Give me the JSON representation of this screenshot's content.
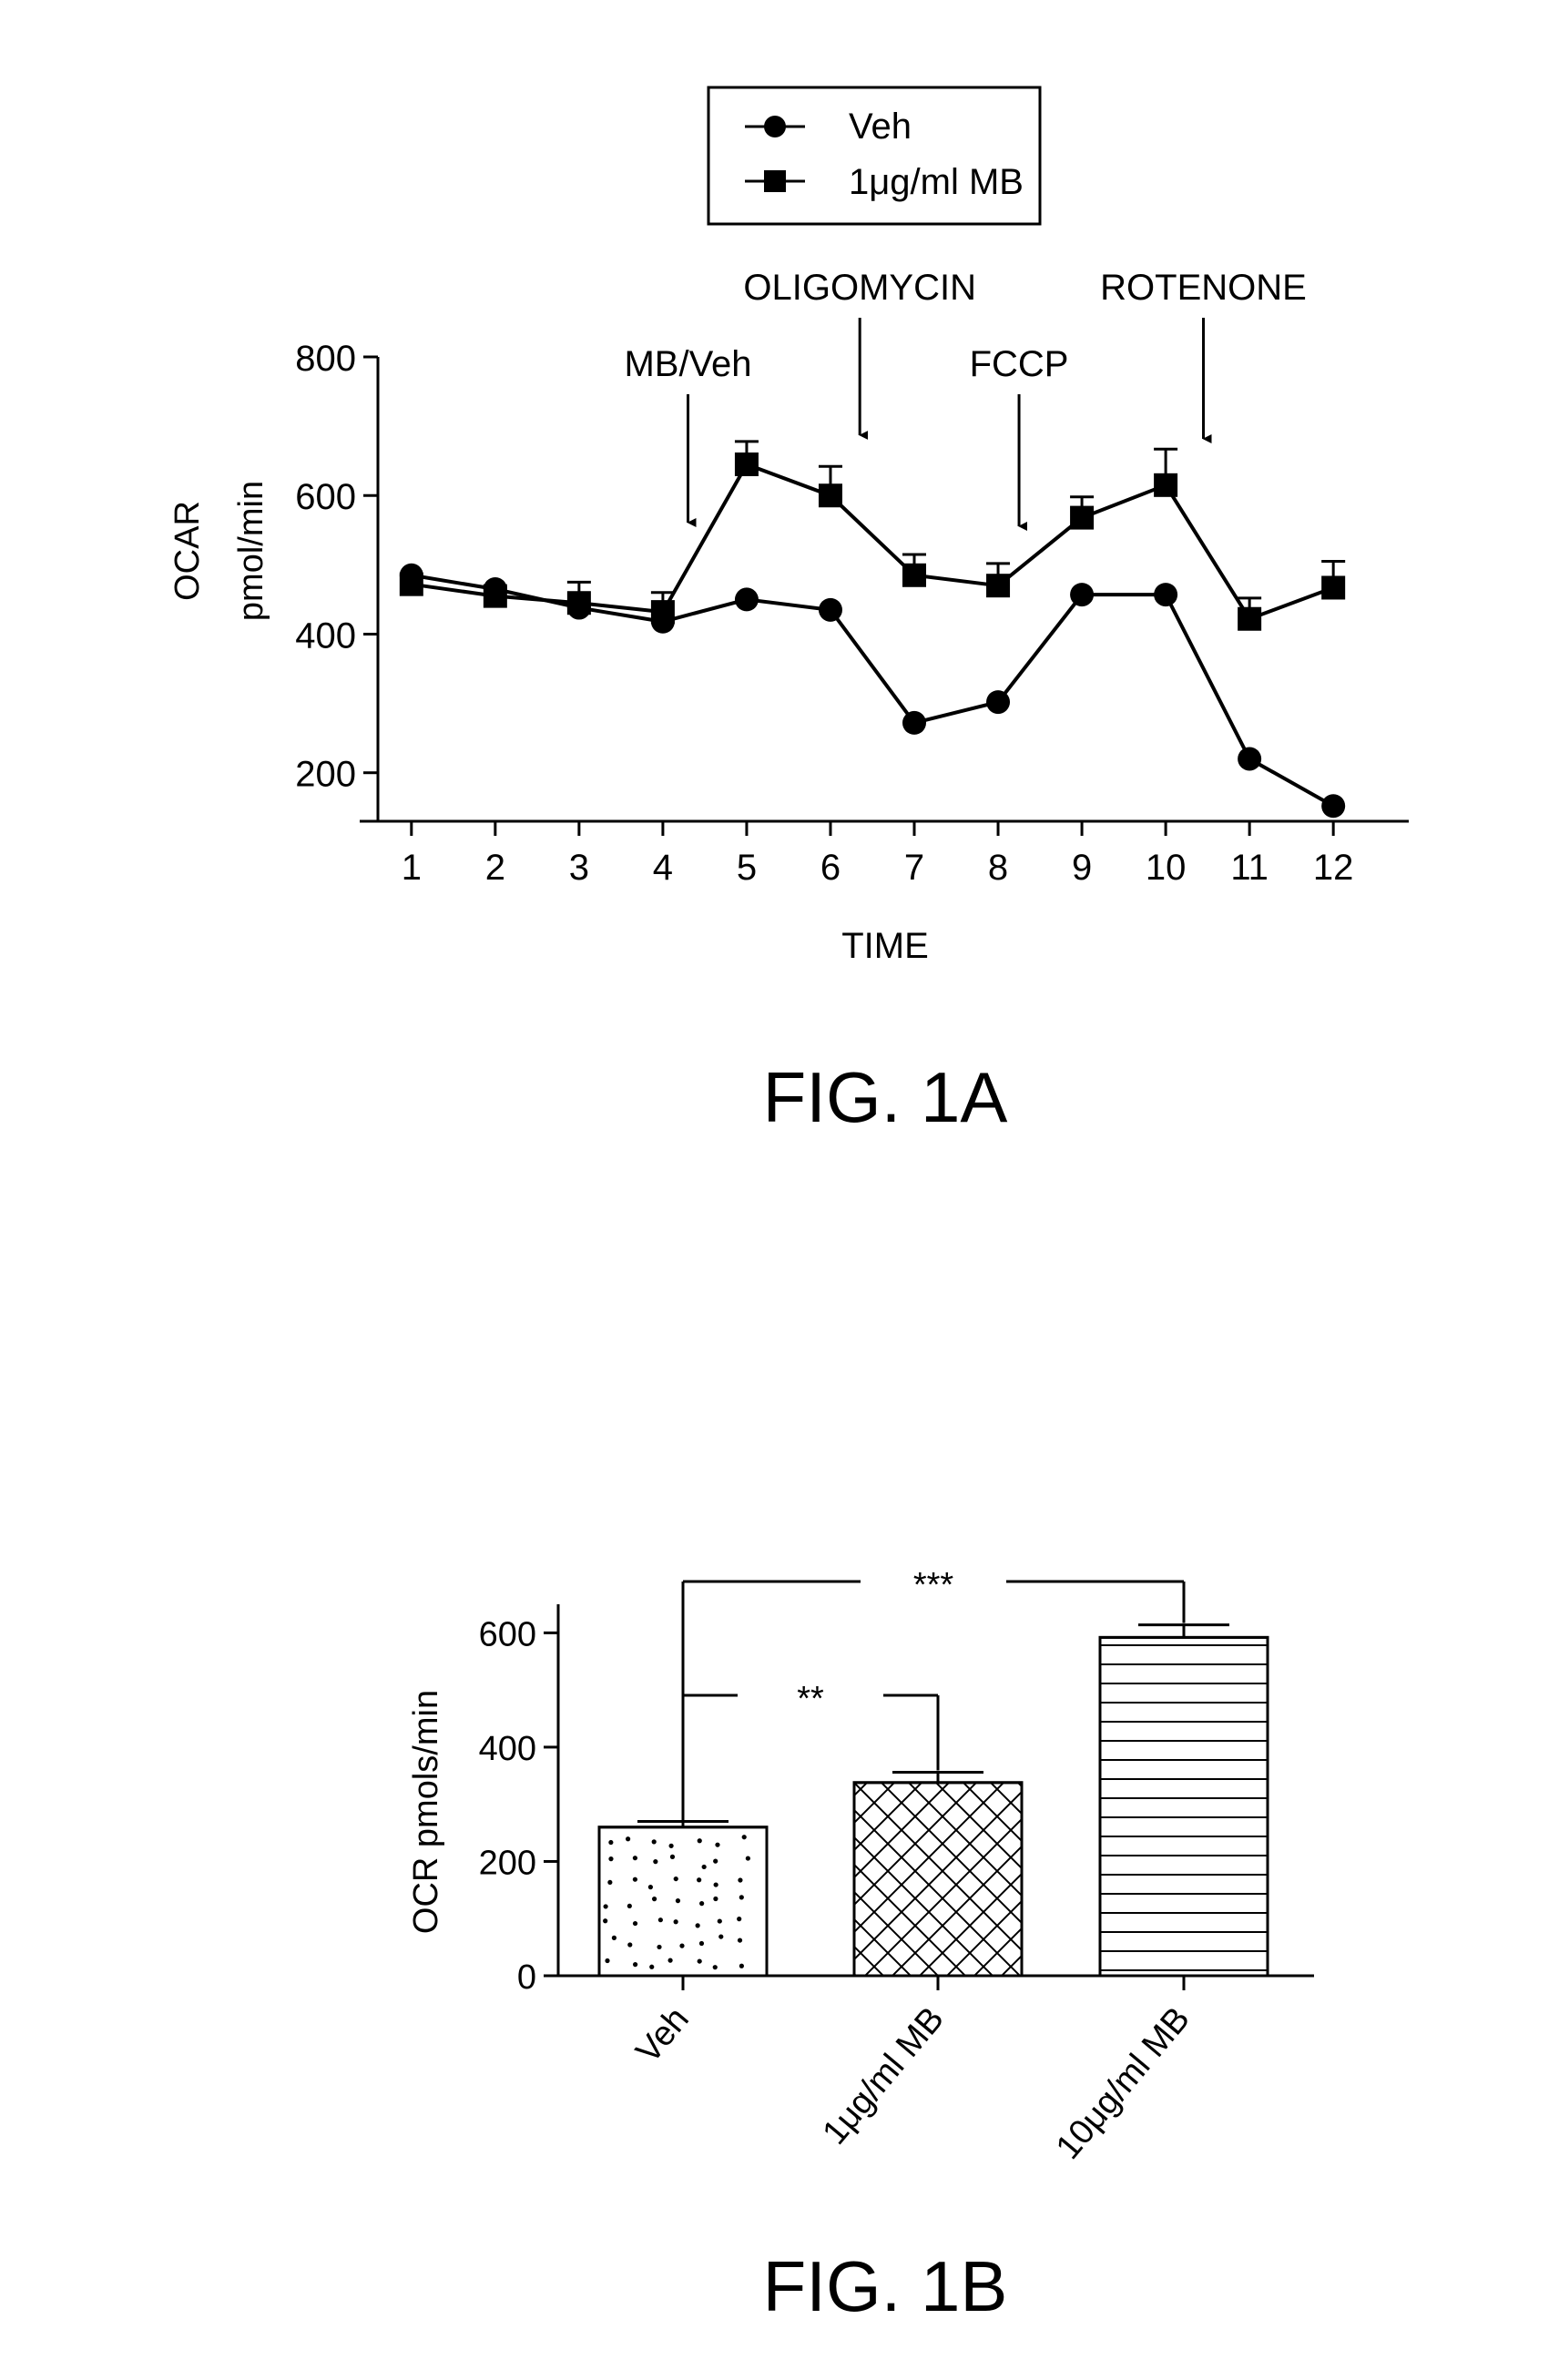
{
  "chart_data": [
    {
      "type": "line",
      "figure_label": "FIG. 1A",
      "xlabel": "TIME",
      "ylabel": [
        "OCAR",
        "pmol/min"
      ],
      "categories": [
        "1",
        "2",
        "3",
        "4",
        "5",
        "6",
        "7",
        "8",
        "9",
        "10",
        "11",
        "12"
      ],
      "x": [
        1,
        2,
        3,
        4,
        5,
        6,
        7,
        8,
        9,
        10,
        11,
        12
      ],
      "xlim": [
        0.6,
        12.9
      ],
      "ylim": [
        130,
        800
      ],
      "yticks": [
        "200",
        "400",
        "600",
        "800"
      ],
      "grid": false,
      "legend_position": "top",
      "series": [
        {
          "name": "Veh",
          "marker": "circle",
          "values": [
            485,
            465,
            438,
            418,
            450,
            435,
            272,
            302,
            457,
            457,
            220,
            152
          ],
          "errors": [
            0,
            0,
            0,
            0,
            0,
            0,
            0,
            0,
            0,
            0,
            0,
            0
          ]
        },
        {
          "name": "1μg/ml MB",
          "marker": "square",
          "values": [
            472,
            455,
            445,
            432,
            645,
            600,
            485,
            470,
            568,
            615,
            422,
            467
          ],
          "errors": [
            0,
            12,
            30,
            28,
            33,
            42,
            30,
            32,
            30,
            52,
            30,
            38
          ]
        }
      ],
      "annotations": [
        {
          "text": "MB/Veh",
          "x": 4.3
        },
        {
          "text": "OLIGOMYCIN",
          "x": 6.35
        },
        {
          "text": "FCCP",
          "x": 8.25
        },
        {
          "text": "ROTENONE",
          "x": 10.45
        }
      ]
    },
    {
      "type": "bar",
      "figure_label": "FIG. 1B",
      "xlabel": "",
      "ylabel": "OCR pmols/min",
      "categories": [
        "Veh",
        "1μg/ml MB",
        "10μg/ml MB"
      ],
      "values": [
        260,
        338,
        592
      ],
      "errors": [
        10,
        18,
        22
      ],
      "patterns": [
        "dots",
        "crosshatch",
        "horizontal-lines"
      ],
      "ylim": [
        0,
        650
      ],
      "yticks": [
        "0",
        "200",
        "400",
        "600"
      ],
      "grid": false,
      "significance": [
        {
          "from": "Veh",
          "to": "1μg/ml MB",
          "label": "**"
        },
        {
          "from": "Veh",
          "to": "10μg/ml MB",
          "label": "***"
        }
      ]
    }
  ]
}
